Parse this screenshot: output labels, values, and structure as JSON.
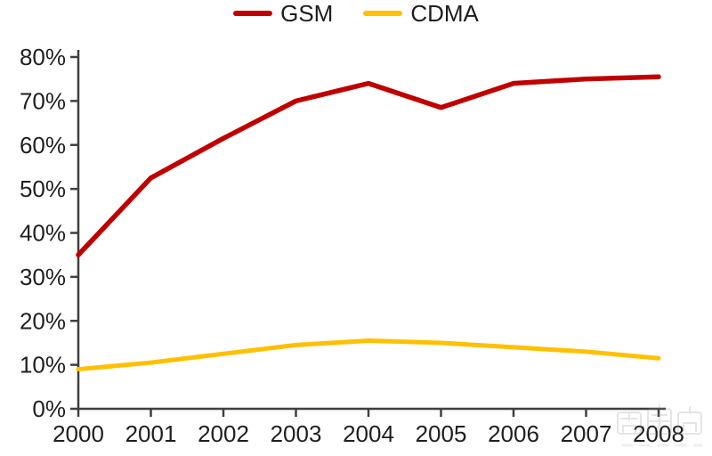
{
  "chart_data": {
    "type": "line",
    "title": "",
    "xlabel": "",
    "ylabel": "",
    "categories": [
      "2000",
      "2001",
      "2002",
      "2003",
      "2004",
      "2005",
      "2006",
      "2007",
      "2008"
    ],
    "series": [
      {
        "name": "GSM",
        "color": "#C00000",
        "values": [
          35,
          52.5,
          61.5,
          70,
          74,
          68.5,
          74,
          75,
          75.5
        ]
      },
      {
        "name": "CDMA",
        "color": "#FFC000",
        "values": [
          9,
          10.5,
          12.5,
          14.5,
          15.5,
          15,
          14,
          13,
          11.5
        ]
      }
    ],
    "ylim": [
      0,
      80
    ],
    "y_tick_step": 10,
    "y_tick_labels": [
      "0%",
      "10%",
      "20%",
      "30%",
      "40%",
      "50%",
      "60%",
      "70%",
      "80%"
    ],
    "grid": false,
    "legend_position": "top-center"
  },
  "colors": {
    "axis": "#3f3f3f",
    "tick_label": "#1f1f1f",
    "background": "#ffffff"
  },
  "watermark": {
    "text": "智东西"
  }
}
